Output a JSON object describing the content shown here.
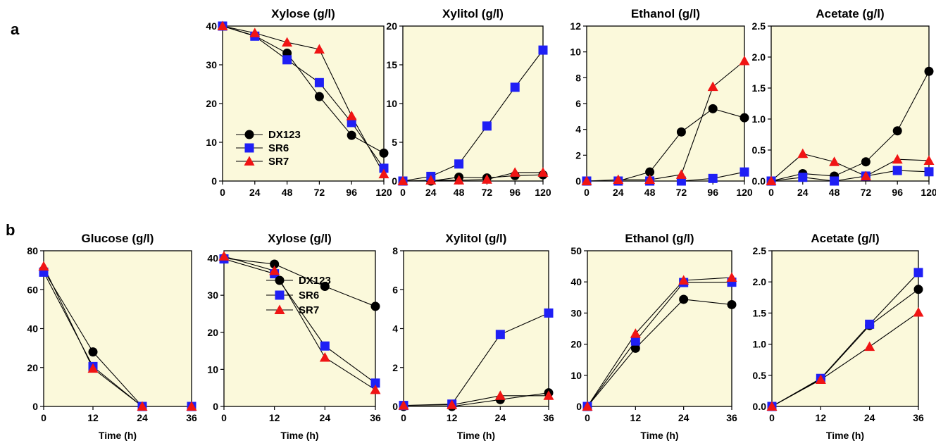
{
  "panel_labels": [
    "a",
    "b"
  ],
  "colors": {
    "plot_background": "#FBF9DB",
    "DX123": "#000000",
    "SR6": "#1F1FF5",
    "SR7": "#F01414"
  },
  "chart_data": [
    {
      "type": "line",
      "panel": "a",
      "title": "Xylose (g/l)",
      "xlabel": "",
      "ylabel": "",
      "x": [
        0,
        24,
        48,
        72,
        96,
        120
      ],
      "xticks": [
        0,
        24,
        48,
        72,
        96,
        120
      ],
      "ylim": [
        0,
        40
      ],
      "yticks": [
        0,
        10,
        20,
        30,
        40
      ],
      "ytick_labels": [
        "0",
        "10",
        "20",
        "30",
        "40"
      ],
      "grid": false,
      "legend": {
        "placement": "bottom-left",
        "entries": [
          "DX123",
          "SR6",
          "SR7"
        ]
      },
      "series": [
        {
          "name": "DX123",
          "marker": "circle",
          "values": [
            40,
            37.5,
            33,
            21.8,
            11.8,
            7.2
          ]
        },
        {
          "name": "SR6",
          "marker": "square",
          "values": [
            40,
            37.4,
            31.3,
            25.4,
            15.1,
            3.3
          ]
        },
        {
          "name": "SR7",
          "marker": "triangle",
          "values": [
            40,
            38.2,
            35.8,
            34,
            16.8,
            1.8
          ]
        }
      ]
    },
    {
      "type": "line",
      "panel": "a",
      "title": "Xylitol (g/l)",
      "xlabel": "",
      "ylabel": "",
      "x": [
        0,
        24,
        48,
        72,
        96,
        120
      ],
      "xticks": [
        0,
        24,
        48,
        72,
        96,
        120
      ],
      "ylim": [
        0,
        20
      ],
      "yticks": [
        0,
        5,
        10,
        15,
        20
      ],
      "ytick_labels": [
        "0",
        "5",
        "10",
        "15",
        "20"
      ],
      "grid": false,
      "series": [
        {
          "name": "DX123",
          "marker": "circle",
          "values": [
            0,
            0,
            0.5,
            0.4,
            0.7,
            0.8
          ]
        },
        {
          "name": "SR6",
          "marker": "square",
          "values": [
            0,
            0.6,
            2.2,
            7.1,
            12.1,
            16.9
          ]
        },
        {
          "name": "SR7",
          "marker": "triangle",
          "values": [
            0,
            0.1,
            0.1,
            0.2,
            1.1,
            1.1
          ]
        }
      ]
    },
    {
      "type": "line",
      "panel": "a",
      "title": "Ethanol (g/l)",
      "xlabel": "",
      "ylabel": "",
      "x": [
        0,
        24,
        48,
        72,
        96,
        120
      ],
      "xticks": [
        0,
        24,
        48,
        72,
        96,
        120
      ],
      "ylim": [
        0,
        12
      ],
      "yticks": [
        0,
        2,
        4,
        6,
        8,
        10,
        12
      ],
      "ytick_labels": [
        "0",
        "2",
        "4",
        "6",
        "8",
        "10",
        "12"
      ],
      "grid": false,
      "series": [
        {
          "name": "DX123",
          "marker": "circle",
          "values": [
            0,
            0,
            0.7,
            3.8,
            5.6,
            4.9
          ]
        },
        {
          "name": "SR6",
          "marker": "square",
          "values": [
            0,
            0,
            0,
            0,
            0.2,
            0.7
          ]
        },
        {
          "name": "SR7",
          "marker": "triangle",
          "values": [
            0,
            0.1,
            0.1,
            0.5,
            7.3,
            9.3
          ]
        }
      ]
    },
    {
      "type": "line",
      "panel": "a",
      "title": "Acetate (g/l)",
      "xlabel": "",
      "ylabel": "",
      "x": [
        0,
        24,
        48,
        72,
        96,
        120
      ],
      "xticks": [
        0,
        24,
        48,
        72,
        96,
        120
      ],
      "ylim": [
        0,
        2.5
      ],
      "yticks": [
        0,
        0.5,
        1,
        1.5,
        2,
        2.5
      ],
      "ytick_labels": [
        "0.0",
        "0.5",
        "1.0",
        "1.5",
        "2.0",
        "2.5"
      ],
      "grid": false,
      "series": [
        {
          "name": "DX123",
          "marker": "circle",
          "values": [
            0,
            0.12,
            0.08,
            0.31,
            0.81,
            1.77
          ]
        },
        {
          "name": "SR6",
          "marker": "square",
          "values": [
            0,
            0.06,
            0,
            0.08,
            0.17,
            0.15
          ]
        },
        {
          "name": "SR7",
          "marker": "triangle",
          "values": [
            0,
            0.44,
            0.31,
            0.08,
            0.35,
            0.33
          ]
        }
      ]
    },
    {
      "type": "line",
      "panel": "b",
      "title": "Glucose (g/l)",
      "xlabel": "Time (h)",
      "ylabel": "",
      "x": [
        0,
        12,
        24,
        36
      ],
      "xticks": [
        0,
        12,
        24,
        36
      ],
      "ylim": [
        0,
        80
      ],
      "yticks": [
        0,
        20,
        40,
        60,
        80
      ],
      "ytick_labels": [
        "0",
        "20",
        "40",
        "60",
        "80"
      ],
      "grid": false,
      "series": [
        {
          "name": "DX123",
          "marker": "circle",
          "values": [
            70,
            28,
            0,
            0
          ]
        },
        {
          "name": "SR6",
          "marker": "square",
          "values": [
            69,
            20.5,
            0,
            0
          ]
        },
        {
          "name": "SR7",
          "marker": "triangle",
          "values": [
            72,
            19.5,
            0,
            0
          ]
        }
      ]
    },
    {
      "type": "line",
      "panel": "b",
      "title": "Xylose (g/l)",
      "xlabel": "Time (h)",
      "ylabel": "",
      "x": [
        0,
        12,
        24,
        36
      ],
      "xticks": [
        0,
        12,
        24,
        36
      ],
      "ylim": [
        0,
        42
      ],
      "yticks": [
        0,
        10,
        20,
        30,
        40
      ],
      "ytick_labels": [
        "0",
        "10",
        "20",
        "30",
        "40"
      ],
      "grid": false,
      "legend": {
        "placement": "top-right",
        "entries": [
          "DX123",
          "SR6",
          "SR7"
        ]
      },
      "series": [
        {
          "name": "DX123",
          "marker": "circle",
          "values": [
            40,
            38.4,
            32.4,
            27
          ]
        },
        {
          "name": "SR6",
          "marker": "square",
          "values": [
            39.8,
            35.8,
            16.3,
            6.3
          ]
        },
        {
          "name": "SR7",
          "marker": "triangle",
          "values": [
            40.5,
            36.6,
            13.2,
            4.5
          ]
        }
      ]
    },
    {
      "type": "line",
      "panel": "b",
      "title": "Xylitol (g/l)",
      "xlabel": "Time (h)",
      "ylabel": "",
      "x": [
        0,
        12,
        24,
        36
      ],
      "xticks": [
        0,
        12,
        24,
        36
      ],
      "ylim": [
        0,
        8
      ],
      "yticks": [
        0,
        2,
        4,
        6,
        8
      ],
      "ytick_labels": [
        "0",
        "2",
        "4",
        "6",
        "8"
      ],
      "grid": false,
      "series": [
        {
          "name": "DX123",
          "marker": "circle",
          "values": [
            0,
            0,
            0.35,
            0.7
          ]
        },
        {
          "name": "SR6",
          "marker": "square",
          "values": [
            0.05,
            0.12,
            3.7,
            4.8
          ]
        },
        {
          "name": "SR7",
          "marker": "triangle",
          "values": [
            0.05,
            0.08,
            0.55,
            0.55
          ]
        }
      ]
    },
    {
      "type": "line",
      "panel": "b",
      "title": "Ethanol (g/l)",
      "xlabel": "Time (h)",
      "ylabel": "",
      "x": [
        0,
        12,
        24,
        36
      ],
      "xticks": [
        0,
        12,
        24,
        36
      ],
      "ylim": [
        0,
        50
      ],
      "yticks": [
        0,
        10,
        20,
        30,
        40,
        50
      ],
      "ytick_labels": [
        "0",
        "10",
        "20",
        "30",
        "40",
        "50"
      ],
      "grid": false,
      "series": [
        {
          "name": "DX123",
          "marker": "circle",
          "values": [
            0,
            18.7,
            34.4,
            32.7
          ]
        },
        {
          "name": "SR6",
          "marker": "square",
          "values": [
            0,
            21,
            39.8,
            39.9
          ]
        },
        {
          "name": "SR7",
          "marker": "triangle",
          "values": [
            0,
            23.4,
            40.5,
            41.4
          ]
        }
      ]
    },
    {
      "type": "line",
      "panel": "b",
      "title": "Acetate (g/l)",
      "xlabel": "Time (h)",
      "ylabel": "",
      "x": [
        0,
        12,
        24,
        36
      ],
      "xticks": [
        0,
        12,
        24,
        36
      ],
      "ylim": [
        0,
        2.5
      ],
      "yticks": [
        0,
        0.5,
        1,
        1.5,
        2,
        2.5
      ],
      "ytick_labels": [
        "0.0",
        "0.5",
        "1.0",
        "1.5",
        "2.0",
        "2.5"
      ],
      "grid": false,
      "series": [
        {
          "name": "DX123",
          "marker": "circle",
          "values": [
            0,
            0.44,
            1.3,
            1.88
          ]
        },
        {
          "name": "SR6",
          "marker": "square",
          "values": [
            0,
            0.45,
            1.32,
            2.15
          ]
        },
        {
          "name": "SR7",
          "marker": "triangle",
          "values": [
            0,
            0.43,
            0.96,
            1.51
          ]
        }
      ]
    }
  ]
}
